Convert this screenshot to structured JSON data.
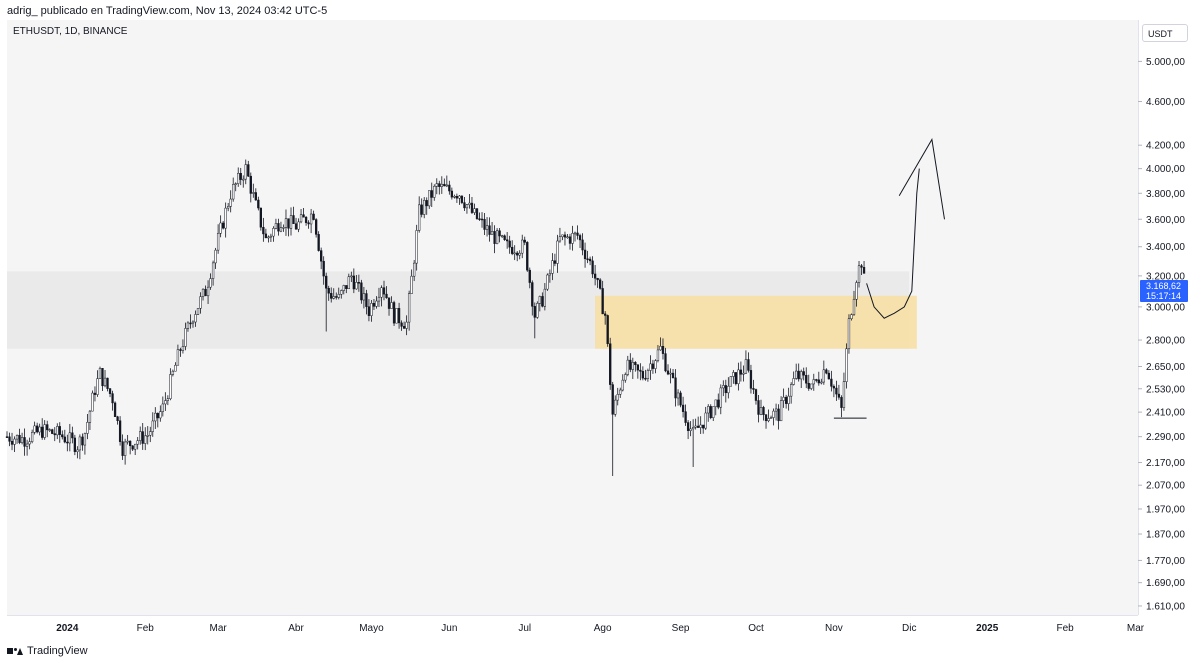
{
  "header": {
    "publisher_line": "adrig_ publicado en TradingView.com, Nov 13, 2024 03:42 UTC-5"
  },
  "symbol": {
    "title": "ETHUSDT, 1D, BINANCE"
  },
  "axis": {
    "currency": "USDT"
  },
  "footer": {
    "brand": "TradingView"
  },
  "last_price": {
    "value": "3.168,62",
    "countdown": "15:17:14"
  },
  "colors": {
    "candle": "#131722",
    "grey_zone": "#e8e8e8",
    "yellow_zone": "#f7dfa4",
    "badge": "#2962ff"
  },
  "chart_data": {
    "type": "candlestick",
    "symbol": "ETHUSDT",
    "interval": "1D",
    "exchange": "BINANCE",
    "y_scale": "log",
    "y_ticks": [
      5000,
      4600,
      4200,
      4000,
      3800,
      3600,
      3400,
      3200,
      3000,
      2800,
      2650,
      2530,
      2410,
      2290,
      2170,
      2070,
      1970,
      1870,
      1770,
      1690,
      1610
    ],
    "y_tick_labels": [
      "5.000,00",
      "4.600,00",
      "4.200,00",
      "4.000,00",
      "3.800,00",
      "3.600,00",
      "3.400,00",
      "3.200,00",
      "3.000,00",
      "2.800,00",
      "2.650,00",
      "2.530,00",
      "2.410,00",
      "2.290,00",
      "2.170,00",
      "2.070,00",
      "1.970,00",
      "1.870,00",
      "1.770,00",
      "1.690,00",
      "1.610,00"
    ],
    "x_ticks": [
      {
        "label": "2024",
        "date": "2024-01-01",
        "bold": true
      },
      {
        "label": "Feb",
        "date": "2024-02-01"
      },
      {
        "label": "Mar",
        "date": "2024-03-01"
      },
      {
        "label": "Abr",
        "date": "2024-04-01"
      },
      {
        "label": "Mayo",
        "date": "2024-05-01"
      },
      {
        "label": "Jun",
        "date": "2024-06-01"
      },
      {
        "label": "Jul",
        "date": "2024-07-01"
      },
      {
        "label": "Ago",
        "date": "2024-08-01"
      },
      {
        "label": "Sep",
        "date": "2024-09-01"
      },
      {
        "label": "Oct",
        "date": "2024-10-01"
      },
      {
        "label": "Nov",
        "date": "2024-11-01"
      },
      {
        "label": "Dic",
        "date": "2024-12-01"
      },
      {
        "label": "2025",
        "date": "2025-01-01",
        "bold": true
      },
      {
        "label": "Feb",
        "date": "2025-02-01"
      },
      {
        "label": "Mar",
        "date": "2025-03-01"
      }
    ],
    "x_range": [
      "2023-12-08",
      "2025-03-02"
    ],
    "y_range": [
      1580,
      5450
    ],
    "closes": [
      {
        "date": "2023-12-08",
        "close": 2290
      },
      {
        "date": "2023-12-15",
        "close": 2280
      },
      {
        "date": "2023-12-22",
        "close": 2320
      },
      {
        "date": "2023-12-29",
        "close": 2300
      },
      {
        "date": "2024-01-05",
        "close": 2250
      },
      {
        "date": "2024-01-08",
        "close": 2310
      },
      {
        "date": "2024-01-12",
        "close": 2530
      },
      {
        "date": "2024-01-14",
        "close": 2610
      },
      {
        "date": "2024-01-19",
        "close": 2480
      },
      {
        "date": "2024-01-23",
        "close": 2240
      },
      {
        "date": "2024-01-28",
        "close": 2270
      },
      {
        "date": "2024-02-02",
        "close": 2300
      },
      {
        "date": "2024-02-08",
        "close": 2430
      },
      {
        "date": "2024-02-15",
        "close": 2750
      },
      {
        "date": "2024-02-20",
        "close": 2950
      },
      {
        "date": "2024-02-25",
        "close": 3100
      },
      {
        "date": "2024-03-01",
        "close": 3450
      },
      {
        "date": "2024-03-06",
        "close": 3800
      },
      {
        "date": "2024-03-12",
        "close": 4000
      },
      {
        "date": "2024-03-16",
        "close": 3700
      },
      {
        "date": "2024-03-20",
        "close": 3450
      },
      {
        "date": "2024-03-26",
        "close": 3600
      },
      {
        "date": "2024-04-01",
        "close": 3550
      },
      {
        "date": "2024-04-08",
        "close": 3650
      },
      {
        "date": "2024-04-13",
        "close": 3100
      },
      {
        "date": "2024-04-18",
        "close": 3050
      },
      {
        "date": "2024-04-23",
        "close": 3200
      },
      {
        "date": "2024-04-30",
        "close": 2980
      },
      {
        "date": "2024-05-05",
        "close": 3150
      },
      {
        "date": "2024-05-10",
        "close": 2950
      },
      {
        "date": "2024-05-15",
        "close": 2900
      },
      {
        "date": "2024-05-20",
        "close": 3650
      },
      {
        "date": "2024-05-27",
        "close": 3850
      },
      {
        "date": "2024-06-05",
        "close": 3800
      },
      {
        "date": "2024-06-10",
        "close": 3650
      },
      {
        "date": "2024-06-17",
        "close": 3500
      },
      {
        "date": "2024-06-24",
        "close": 3400
      },
      {
        "date": "2024-07-01",
        "close": 3400
      },
      {
        "date": "2024-07-05",
        "close": 2950
      },
      {
        "date": "2024-07-08",
        "close": 3050
      },
      {
        "date": "2024-07-15",
        "close": 3450
      },
      {
        "date": "2024-07-22",
        "close": 3480
      },
      {
        "date": "2024-07-28",
        "close": 3250
      },
      {
        "date": "2024-08-02",
        "close": 2950
      },
      {
        "date": "2024-08-05",
        "close": 2400
      },
      {
        "date": "2024-08-10",
        "close": 2650
      },
      {
        "date": "2024-08-17",
        "close": 2600
      },
      {
        "date": "2024-08-24",
        "close": 2750
      },
      {
        "date": "2024-08-31",
        "close": 2480
      },
      {
        "date": "2024-09-06",
        "close": 2300
      },
      {
        "date": "2024-09-12",
        "close": 2400
      },
      {
        "date": "2024-09-20",
        "close": 2550
      },
      {
        "date": "2024-09-27",
        "close": 2650
      },
      {
        "date": "2024-10-03",
        "close": 2400
      },
      {
        "date": "2024-10-10",
        "close": 2400
      },
      {
        "date": "2024-10-17",
        "close": 2600
      },
      {
        "date": "2024-10-24",
        "close": 2550
      },
      {
        "date": "2024-10-29",
        "close": 2650
      },
      {
        "date": "2024-11-04",
        "close": 2420
      },
      {
        "date": "2024-11-07",
        "close": 2900
      },
      {
        "date": "2024-11-10",
        "close": 3200
      },
      {
        "date": "2024-11-12",
        "close": 3300
      },
      {
        "date": "2024-11-13",
        "close": 3168.62
      }
    ],
    "zones": [
      {
        "name": "grey-zone",
        "from": "2023-12-08",
        "to": "2024-12-01",
        "low": 2750,
        "high": 3230
      },
      {
        "name": "yellow-zone",
        "from": "2024-07-29",
        "to": "2024-12-04",
        "low": 2750,
        "high": 3070
      }
    ],
    "support_line": {
      "from": "2024-11-01",
      "to": "2024-11-14",
      "price": 2380
    },
    "projection": [
      {
        "date": "2024-11-14",
        "price": 3150
      },
      {
        "date": "2024-11-17",
        "price": 3000
      },
      {
        "date": "2024-11-21",
        "price": 2930
      },
      {
        "date": "2024-11-25",
        "price": 2960
      },
      {
        "date": "2024-11-29",
        "price": 3000
      },
      {
        "date": "2024-12-02",
        "price": 3100
      },
      {
        "date": "2024-12-04",
        "price": 3800
      },
      {
        "date": "2024-12-05",
        "price": 4000
      }
    ],
    "projection_arrow": [
      {
        "date": "2024-11-27",
        "price": 3780
      },
      {
        "date": "2024-12-10",
        "price": 4250
      },
      {
        "date": "2024-12-15",
        "price": 3600
      }
    ]
  }
}
